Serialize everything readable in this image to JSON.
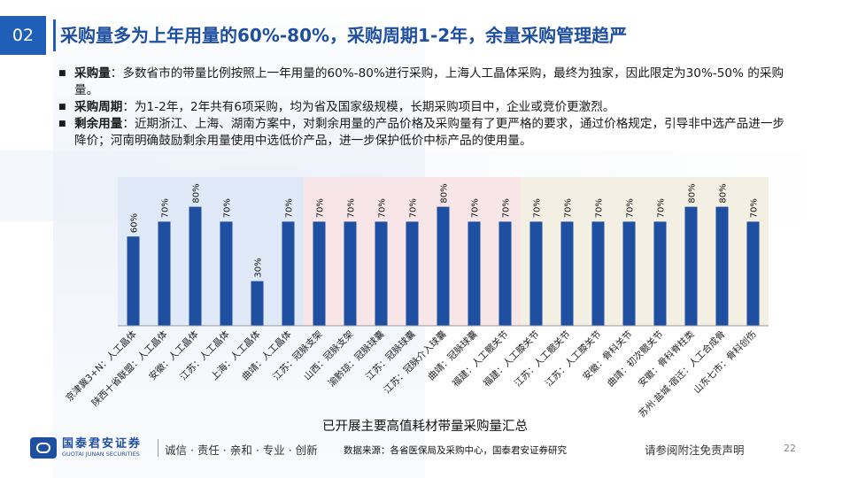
{
  "section_number": "02",
  "title": "采购量多为上年用量的60%-80%，采购周期1-2年，余量采购管理趋严",
  "bullets": [
    {
      "label": "采购量",
      "text": "：多数省市的带量比例按照上一年用量的60%-80%进行采购，上海人工晶体采购，最终为独家，因此限定为30%-50% 的采购量。"
    },
    {
      "label": "采购周期",
      "text": "：为1-2年，2年共有6项采购，均为省及国家级规模，长期采购项目中，企业或竞价更激烈。"
    },
    {
      "label": "剩余用量",
      "text": "：近期浙江、上海、湖南方案中，对剩余用量的产品价格及采购量有了更严格的要求，通过价格规定，引导非中选产品进一步降价；河南明确鼓励剩余用量使用中选低价产品，进一步保护低价中标产品的使用量。"
    }
  ],
  "chart_data": {
    "type": "bar",
    "title": "已开展主要高值耗材带量采购量汇总",
    "categories": [
      "京津冀3+N：人工晶体",
      "陕西十省联盟：人工晶体",
      "安徽：人工晶体",
      "江苏：人工晶体",
      "上海：人工晶体",
      "曲靖：人工晶体",
      "江苏：冠脉支架",
      "山西：冠脉支架",
      "渝黔琼：冠脉球囊",
      "江苏：冠脉球囊",
      "江苏：冠脉介入球囊",
      "曲靖：冠脉球囊",
      "福建：人工髋关节",
      "福建：人工膝关节",
      "江苏：人工髋关节",
      "江苏：人工膝关节",
      "安徽：骨科关节",
      "曲靖：初次髋关节",
      "安徽：骨科脊柱类",
      "苏州·盐城·宿迁：人工合成骨",
      "山东七市：骨科创伤"
    ],
    "values": [
      60,
      70,
      80,
      70,
      30,
      70,
      70,
      70,
      70,
      70,
      80,
      70,
      70,
      70,
      70,
      70,
      70,
      70,
      80,
      80,
      70
    ],
    "data_labels": [
      "60%",
      "70%",
      "80%",
      "70%",
      "30%",
      "70%",
      "70%",
      "70%",
      "70%",
      "70%",
      "80%",
      "70%",
      "70%",
      "70%",
      "70%",
      "70%",
      "70%",
      "70%",
      "80%",
      "80%",
      "70%"
    ],
    "ylim": [
      0,
      100
    ],
    "bar_color": "#1f4fa0",
    "band_colors": [
      "#dfe9f7",
      "#f7e5e8",
      "#f3efe3"
    ]
  },
  "footer": {
    "logo_cn": "国泰君安证券",
    "logo_en": "GUOTAI JUNAN SECURITIES",
    "slogan": "诚信 · 责任 · 亲和 · 专业 · 创新",
    "source": "数据来源：各省医保局及采购中心，国泰君安证券研究",
    "disclaimer": "请参阅附注免责声明",
    "page": "22"
  }
}
